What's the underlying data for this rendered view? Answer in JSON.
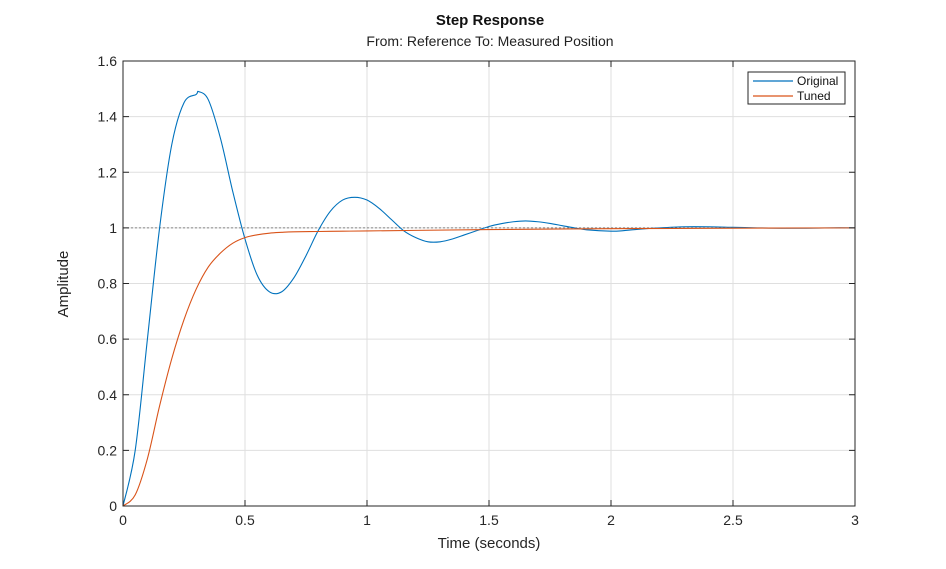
{
  "chart_data": {
    "type": "line",
    "title": "Step Response",
    "subtitle": "From: Reference  To: Measured Position",
    "xlabel": "Time (seconds)",
    "ylabel": "Amplitude",
    "xlim": [
      0,
      3
    ],
    "ylim": [
      0,
      1.6
    ],
    "xticks": [
      "0",
      "0.5",
      "1",
      "1.5",
      "2",
      "2.5",
      "3"
    ],
    "yticks": [
      "0",
      "0.2",
      "0.4",
      "0.6",
      "0.8",
      "1",
      "1.2",
      "1.4",
      "1.6"
    ],
    "grid": true,
    "legend_position": "top-right",
    "reference_line": {
      "y": 1,
      "style": "dashed",
      "color": "#666666"
    },
    "series": [
      {
        "name": "Original",
        "color": "#0072BD",
        "x": [
          0,
          0.05,
          0.1,
          0.15,
          0.2,
          0.25,
          0.3,
          0.31,
          0.35,
          0.4,
          0.45,
          0.5,
          0.55,
          0.6,
          0.65,
          0.7,
          0.75,
          0.8,
          0.85,
          0.9,
          0.95,
          1.0,
          1.05,
          1.1,
          1.15,
          1.2,
          1.25,
          1.3,
          1.35,
          1.4,
          1.45,
          1.5,
          1.55,
          1.6,
          1.65,
          1.7,
          1.75,
          1.8,
          1.85,
          1.9,
          2.0,
          2.05,
          2.1,
          2.2,
          2.3,
          2.4,
          2.5,
          2.6,
          2.7,
          2.8,
          2.9,
          3.0
        ],
        "y": [
          0,
          0.2,
          0.6,
          1.0,
          1.3,
          1.45,
          1.48,
          1.49,
          1.46,
          1.32,
          1.13,
          0.96,
          0.83,
          0.77,
          0.77,
          0.82,
          0.9,
          0.99,
          1.06,
          1.1,
          1.11,
          1.1,
          1.07,
          1.03,
          0.99,
          0.965,
          0.95,
          0.95,
          0.96,
          0.975,
          0.99,
          1.005,
          1.015,
          1.022,
          1.025,
          1.022,
          1.016,
          1.008,
          1.0,
          0.993,
          0.988,
          0.99,
          0.994,
          1.0,
          1.004,
          1.004,
          1.002,
          1.0,
          0.999,
          0.999,
          1.0,
          1.0
        ]
      },
      {
        "name": "Tuned",
        "color": "#D95319",
        "x": [
          0,
          0.05,
          0.1,
          0.15,
          0.2,
          0.25,
          0.3,
          0.35,
          0.4,
          0.45,
          0.5,
          0.55,
          0.6,
          0.65,
          0.7,
          0.8,
          0.9,
          1.0,
          1.2,
          1.5,
          2.0,
          2.5,
          3.0
        ],
        "y": [
          0,
          0.04,
          0.17,
          0.36,
          0.53,
          0.67,
          0.78,
          0.86,
          0.91,
          0.945,
          0.965,
          0.975,
          0.981,
          0.984,
          0.986,
          0.987,
          0.988,
          0.989,
          0.991,
          0.994,
          0.997,
          0.999,
          1.0
        ]
      }
    ]
  }
}
